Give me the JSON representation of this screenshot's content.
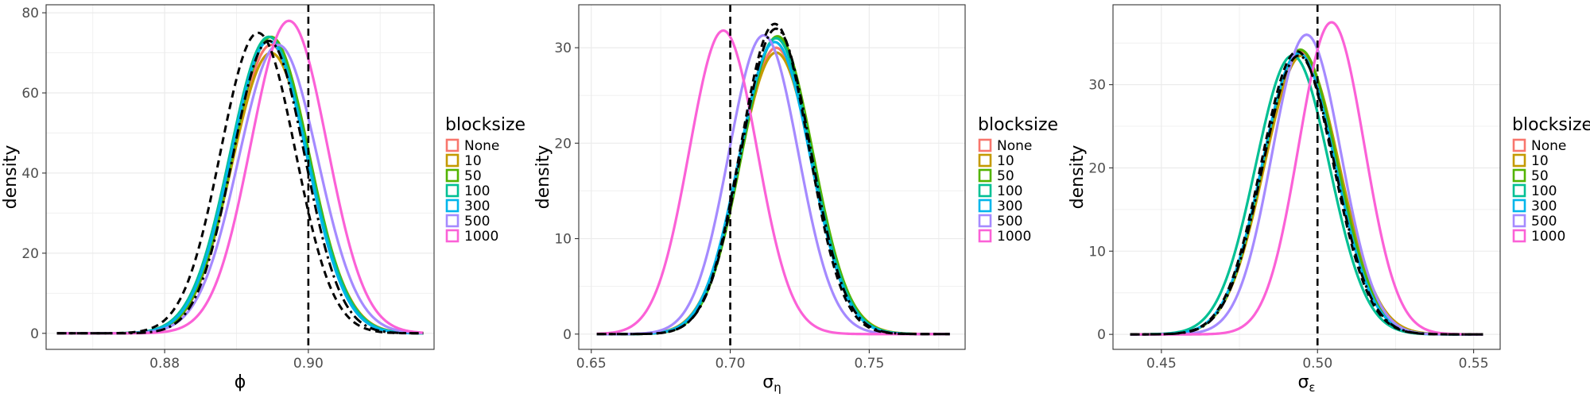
{
  "chart_data": [
    {
      "type": "line",
      "xlabel": "ϕ",
      "ylabel": "density",
      "xlim": [
        0.8635,
        0.9175
      ],
      "ylim": [
        -4,
        82
      ],
      "xticks": [
        0.88,
        0.9
      ],
      "xtick_labels": [
        "0.88",
        "0.90"
      ],
      "yticks": [
        0,
        20,
        40,
        60,
        80
      ],
      "ytick_labels": [
        "0",
        "20",
        "40",
        "60",
        "80"
      ],
      "grid": true,
      "vline": 0.9,
      "legend_position": "right",
      "legend_title": "blocksize",
      "series": [
        {
          "name": "None",
          "color": "#F8766D",
          "center": 0.8948,
          "sd": 0.0053,
          "peak": 72,
          "skew": 0,
          "x_min": 0.865,
          "x_max": 0.916
        },
        {
          "name": "10",
          "color": "#C49A00",
          "center": 0.8948,
          "sd": 0.0054,
          "peak": 70,
          "skew": 0,
          "x_min": 0.865,
          "x_max": 0.916
        },
        {
          "name": "50",
          "color": "#53B400",
          "center": 0.8948,
          "sd": 0.0053,
          "peak": 74,
          "skew": 0,
          "x_min": 0.865,
          "x_max": 0.916
        },
        {
          "name": "100",
          "color": "#00C094",
          "center": 0.8945,
          "sd": 0.0054,
          "peak": 74,
          "skew": 0,
          "x_min": 0.865,
          "x_max": 0.916
        },
        {
          "name": "300",
          "color": "#00B6EB",
          "center": 0.8945,
          "sd": 0.0053,
          "peak": 73,
          "skew": 0,
          "x_min": 0.865,
          "x_max": 0.916
        },
        {
          "name": "500",
          "color": "#A58AFF",
          "center": 0.8958,
          "sd": 0.0055,
          "peak": 72,
          "skew": 0,
          "x_min": 0.865,
          "x_max": 0.916
        },
        {
          "name": "1000",
          "color": "#FB61D7",
          "center": 0.8973,
          "sd": 0.0053,
          "peak": 78,
          "skew": 0,
          "x_min": 0.865,
          "x_max": 0.916
        },
        {
          "name": "",
          "color": "#000000",
          "dash": "9 6",
          "center": 0.893,
          "sd": 0.0052,
          "peak": 75,
          "skew": 0,
          "x_min": 0.865,
          "x_max": 0.916
        },
        {
          "name": "",
          "color": "#000000",
          "dash": "12 5 3 5",
          "center": 0.8945,
          "sd": 0.005,
          "peak": 73,
          "skew": 0,
          "x_min": 0.865,
          "x_max": 0.916
        }
      ]
    },
    {
      "type": "line",
      "xlabel": "σ",
      "xlabel_sub": "η",
      "ylabel": "density",
      "xlim": [
        0.6455,
        0.7845
      ],
      "ylim": [
        -1.6,
        34.5
      ],
      "xticks": [
        0.65,
        0.7,
        0.75
      ],
      "xtick_labels": [
        "0.65",
        "0.70",
        "0.75"
      ],
      "yticks": [
        0,
        10,
        20,
        30
      ],
      "ytick_labels": [
        "0",
        "10",
        "20",
        "30"
      ],
      "grid": true,
      "vline": 0.7,
      "legend_position": "right",
      "legend_title": "blocksize",
      "series": [
        {
          "name": "None",
          "color": "#F8766D",
          "center": 0.7165,
          "sd": 0.013,
          "peak": 30,
          "skew": 0,
          "x_min": 0.652,
          "x_max": 0.779
        },
        {
          "name": "10",
          "color": "#C49A00",
          "center": 0.7165,
          "sd": 0.0132,
          "peak": 29.5,
          "skew": 0,
          "x_min": 0.652,
          "x_max": 0.779
        },
        {
          "name": "50",
          "color": "#53B400",
          "center": 0.717,
          "sd": 0.0128,
          "peak": 31.2,
          "skew": 0,
          "x_min": 0.652,
          "x_max": 0.779
        },
        {
          "name": "100",
          "color": "#00C094",
          "center": 0.7165,
          "sd": 0.0128,
          "peak": 31,
          "skew": 0,
          "x_min": 0.652,
          "x_max": 0.779
        },
        {
          "name": "300",
          "color": "#00B6EB",
          "center": 0.716,
          "sd": 0.0128,
          "peak": 30.6,
          "skew": 0,
          "x_min": 0.652,
          "x_max": 0.779
        },
        {
          "name": "500",
          "color": "#A58AFF",
          "center": 0.712,
          "sd": 0.0125,
          "peak": 31.3,
          "skew": 0,
          "x_min": 0.652,
          "x_max": 0.779
        },
        {
          "name": "1000",
          "color": "#FB61D7",
          "center": 0.6975,
          "sd": 0.0122,
          "peak": 31.8,
          "skew": 0,
          "x_min": 0.652,
          "x_max": 0.779
        },
        {
          "name": "",
          "color": "#000000",
          "dash": "9 6",
          "center": 0.716,
          "sd": 0.0122,
          "peak": 32.5,
          "skew": 0,
          "x_min": 0.652,
          "x_max": 0.779
        },
        {
          "name": "",
          "color": "#000000",
          "dash": "12 5 3 5",
          "center": 0.7165,
          "sd": 0.0124,
          "peak": 32,
          "skew": 0,
          "x_min": 0.652,
          "x_max": 0.779
        }
      ]
    },
    {
      "type": "line",
      "xlabel": "σ",
      "xlabel_sub": "ε",
      "ylabel": "density",
      "xlim": [
        0.4345,
        0.5585
      ],
      "ylim": [
        -1.8,
        39.6
      ],
      "xticks": [
        0.45,
        0.5,
        0.55
      ],
      "xtick_labels": [
        "0.45",
        "0.50",
        "0.55"
      ],
      "yticks": [
        0,
        10,
        20,
        30
      ],
      "ytick_labels": [
        "0",
        "10",
        "20",
        "30"
      ],
      "grid": true,
      "vline": 0.5,
      "legend_position": "right",
      "legend_title": "blocksize",
      "series": [
        {
          "name": "None",
          "color": "#F8766D",
          "center": 0.4945,
          "sd": 0.0118,
          "peak": 34,
          "skew": 0,
          "x_min": 0.44,
          "x_max": 0.553
        },
        {
          "name": "10",
          "color": "#C49A00",
          "center": 0.495,
          "sd": 0.012,
          "peak": 33.5,
          "skew": 0,
          "x_min": 0.44,
          "x_max": 0.553
        },
        {
          "name": "50",
          "color": "#53B400",
          "center": 0.4945,
          "sd": 0.0118,
          "peak": 34.2,
          "skew": 0,
          "x_min": 0.44,
          "x_max": 0.553
        },
        {
          "name": "100",
          "color": "#00C094",
          "center": 0.492,
          "sd": 0.0118,
          "peak": 33.5,
          "skew": 0,
          "x_min": 0.44,
          "x_max": 0.553
        },
        {
          "name": "300",
          "color": "#00B6EB",
          "center": 0.494,
          "sd": 0.0117,
          "peak": 33.8,
          "skew": 0,
          "x_min": 0.44,
          "x_max": 0.553
        },
        {
          "name": "500",
          "color": "#A58AFF",
          "center": 0.4965,
          "sd": 0.011,
          "peak": 36,
          "skew": 0,
          "x_min": 0.44,
          "x_max": 0.553
        },
        {
          "name": "1000",
          "color": "#FB61D7",
          "center": 0.5045,
          "sd": 0.0105,
          "peak": 37.5,
          "skew": 0,
          "x_min": 0.44,
          "x_max": 0.553
        },
        {
          "name": "",
          "color": "#000000",
          "dash": "9 6",
          "center": 0.4935,
          "sd": 0.0115,
          "peak": 34,
          "skew": 0,
          "x_min": 0.44,
          "x_max": 0.553
        },
        {
          "name": "",
          "color": "#000000",
          "dash": "12 5 3 5",
          "center": 0.494,
          "sd": 0.0115,
          "peak": 33.5,
          "skew": 0,
          "x_min": 0.44,
          "x_max": 0.553
        }
      ]
    }
  ]
}
